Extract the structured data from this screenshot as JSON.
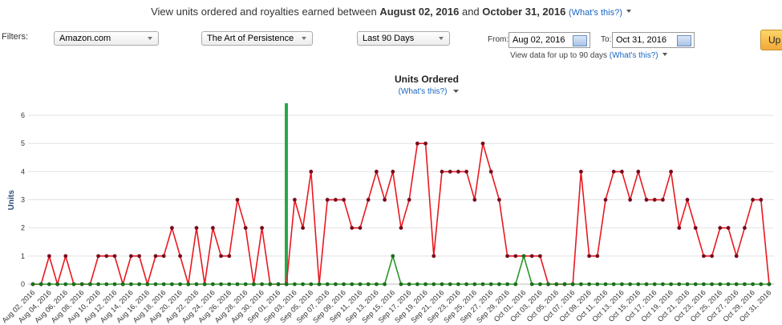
{
  "header": {
    "prefix": "View units ordered and royalties earned between",
    "start": "August 02, 2016",
    "middle": "and",
    "end": "October 31, 2016",
    "help": "(What's this?)"
  },
  "filters": {
    "label": "Filters:",
    "marketplace": "Amazon.com",
    "book": "The Art of Persistence",
    "range": "Last 90 Days",
    "from_label": "From:",
    "from": "Aug 02, 2016",
    "to_label": "To:",
    "to": "Oct 31, 2016",
    "note": "View data for up to 90 days",
    "note_help": "(What's this?)",
    "button": "Up"
  },
  "chart_data": {
    "type": "line",
    "title": "Units Ordered",
    "subtitle": "(What's this?)",
    "y_label": "Units",
    "categories": [
      "Aug 02, 2016",
      null,
      "Aug 04, 2016",
      null,
      "Aug 06, 2016",
      null,
      "Aug 08, 2016",
      null,
      "Aug 10, 2016",
      null,
      "Aug 12, 2016",
      null,
      "Aug 14, 2016",
      null,
      "Aug 16, 2016",
      null,
      "Aug 18, 2016",
      null,
      "Aug 20, 2016",
      null,
      "Aug 22, 2016",
      null,
      "Aug 24, 2016",
      null,
      "Aug 26, 2016",
      null,
      "Aug 28, 2016",
      null,
      "Aug 30, 2016",
      null,
      "Sep 01, 2016",
      null,
      "Sep 03, 2016",
      null,
      "Sep 05, 2016",
      null,
      "Sep 07, 2016",
      null,
      "Sep 09, 2016",
      null,
      "Sep 11, 2016",
      null,
      "Sep 13, 2016",
      null,
      "Sep 15, 2016",
      null,
      "Sep 17, 2016",
      null,
      "Sep 19, 2016",
      null,
      "Sep 21, 2016",
      null,
      "Sep 23, 2016",
      null,
      "Sep 25, 2016",
      null,
      "Sep 27, 2016",
      null,
      "Sep 29, 2016",
      null,
      "Oct 01, 2016",
      null,
      "Oct 03, 2016",
      null,
      "Oct 05, 2016",
      null,
      "Oct 07, 2016",
      null,
      "Oct 09, 2016",
      null,
      "Oct 11, 2016",
      null,
      "Oct 13, 2016",
      null,
      "Oct 15, 2016",
      null,
      "Oct 17, 2016",
      null,
      "Oct 19, 2016",
      null,
      "Oct 21, 2016",
      null,
      "Oct 23, 2016",
      null,
      "Oct 25, 2016",
      null,
      "Oct 27, 2016",
      null,
      "Oct 29, 2016",
      null,
      "Oct 31, 2016"
    ],
    "series": [
      {
        "color": "#e8191f",
        "marker_color": "#7a0a1e",
        "values": [
          0,
          0,
          1,
          0,
          1,
          0,
          0,
          0,
          1,
          1,
          1,
          0,
          1,
          1,
          0,
          1,
          1,
          2,
          1,
          0,
          2,
          0,
          2,
          1,
          1,
          3,
          2,
          0,
          2,
          0,
          0,
          0,
          3,
          2,
          4,
          0,
          3,
          3,
          3,
          2,
          2,
          3,
          4,
          3,
          4,
          2,
          3,
          5,
          5,
          1,
          4,
          4,
          4,
          4,
          3,
          5,
          4,
          3,
          1,
          1,
          1,
          1,
          1,
          0,
          0,
          0,
          0,
          4,
          1,
          1,
          3,
          4,
          4,
          3,
          4,
          3,
          3,
          3,
          4,
          2,
          3,
          2,
          1,
          1,
          2,
          2,
          1,
          2,
          3,
          3,
          0
        ]
      },
      {
        "color": "#2a962a",
        "marker_color": "#1d6e1d",
        "values": [
          0,
          0,
          0,
          0,
          0,
          0,
          0,
          0,
          0,
          0,
          0,
          0,
          0,
          0,
          0,
          0,
          0,
          0,
          0,
          0,
          0,
          0,
          0,
          0,
          0,
          0,
          0,
          0,
          0,
          0,
          0,
          0,
          0,
          0,
          0,
          0,
          0,
          0,
          0,
          0,
          0,
          0,
          0,
          0,
          1,
          0,
          0,
          0,
          0,
          0,
          0,
          0,
          0,
          0,
          0,
          0,
          0,
          0,
          0,
          0,
          1,
          0,
          0,
          0,
          0,
          0,
          0,
          0,
          0,
          0,
          0,
          0,
          0,
          0,
          0,
          0,
          0,
          0,
          0,
          0,
          0,
          0,
          0,
          0,
          0,
          0,
          0,
          0,
          0,
          0,
          0
        ]
      }
    ],
    "ylim": [
      0,
      6.6
    ],
    "yticks": [
      0,
      1,
      2,
      3,
      4,
      5,
      6
    ],
    "grid": true
  }
}
